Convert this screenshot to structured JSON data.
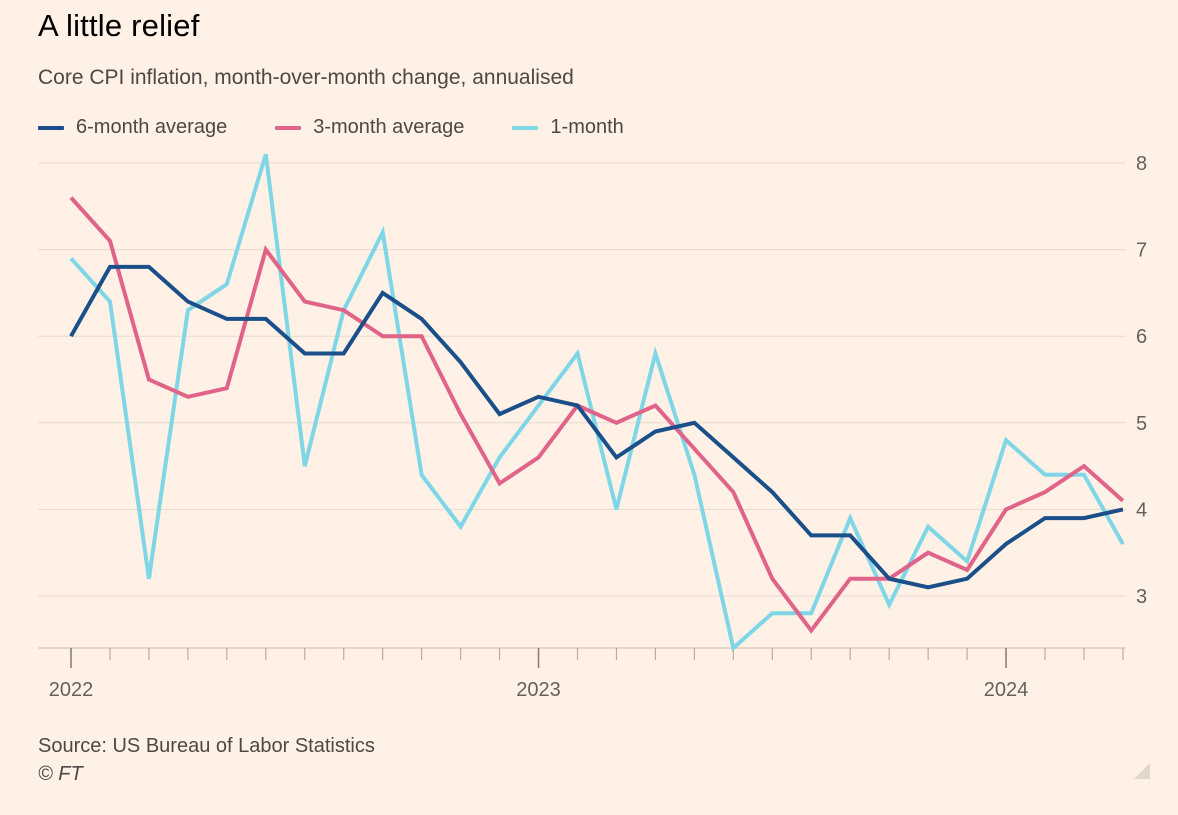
{
  "header": {
    "title": "A little relief",
    "subtitle": "Core CPI inflation, month-over-month change, annualised"
  },
  "footer": {
    "source": "Source: US Bureau of Labor Statistics",
    "credit": "© FT"
  },
  "colors": {
    "background": "#fff1e5",
    "six_month": "#1a4f8a",
    "three_month": "#e0638a",
    "one_month": "#7fd6e6",
    "grid": "#e6d9ce",
    "axis_text": "#66605c"
  },
  "chart_data": {
    "type": "line",
    "x": [
      "2022-01",
      "2022-02",
      "2022-03",
      "2022-04",
      "2022-05",
      "2022-06",
      "2022-07",
      "2022-08",
      "2022-09",
      "2022-10",
      "2022-11",
      "2022-12",
      "2023-01",
      "2023-02",
      "2023-03",
      "2023-04",
      "2023-05",
      "2023-06",
      "2023-07",
      "2023-08",
      "2023-09",
      "2023-10",
      "2023-11",
      "2023-12",
      "2024-01",
      "2024-02",
      "2024-03",
      "2024-04"
    ],
    "x_tick_labels": [
      {
        "x": "2022-01",
        "label": "2022"
      },
      {
        "x": "2023-01",
        "label": "2023"
      },
      {
        "x": "2024-01",
        "label": "2024"
      }
    ],
    "y_ticks": [
      3,
      4,
      5,
      6,
      7,
      8
    ],
    "ylim": [
      2.4,
      8.2
    ],
    "grid": true,
    "y_axis_side": "right",
    "legend_position": "top-left",
    "series": [
      {
        "name": "6-month average",
        "color_key": "six_month",
        "values": [
          6.0,
          6.8,
          6.8,
          6.4,
          6.2,
          6.2,
          5.8,
          5.8,
          6.5,
          6.2,
          5.7,
          5.1,
          5.3,
          5.2,
          4.6,
          4.9,
          5.0,
          4.6,
          4.2,
          3.7,
          3.7,
          3.2,
          3.1,
          3.2,
          3.6,
          3.9,
          3.9,
          4.0
        ]
      },
      {
        "name": "3-month average",
        "color_key": "three_month",
        "values": [
          7.6,
          7.1,
          5.5,
          5.3,
          5.4,
          7.0,
          6.4,
          6.3,
          6.0,
          6.0,
          5.1,
          4.3,
          4.6,
          5.2,
          5.0,
          5.2,
          4.7,
          4.2,
          3.2,
          2.6,
          3.2,
          3.2,
          3.5,
          3.3,
          4.0,
          4.2,
          4.5,
          4.1
        ]
      },
      {
        "name": "1-month",
        "color_key": "one_month",
        "values": [
          6.9,
          6.4,
          3.2,
          6.3,
          6.6,
          8.1,
          4.5,
          6.3,
          7.2,
          4.4,
          3.8,
          4.6,
          5.2,
          5.8,
          4.0,
          5.8,
          4.4,
          2.4,
          2.8,
          2.8,
          3.9,
          2.9,
          3.8,
          3.4,
          4.8,
          4.4,
          4.4,
          3.6
        ]
      }
    ]
  }
}
